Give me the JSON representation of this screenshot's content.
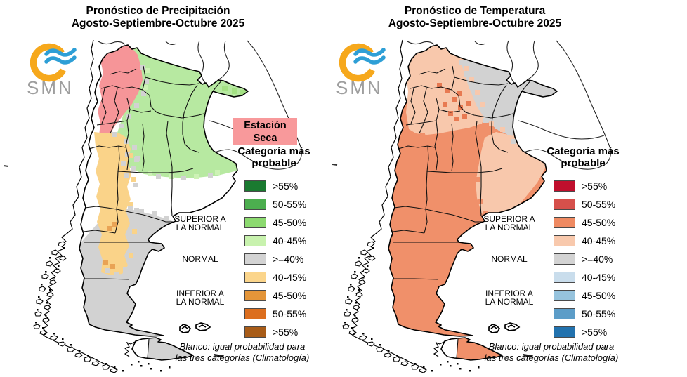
{
  "panels": [
    {
      "id": "precipitation",
      "title_line1": "Pronóstico de Precipitación",
      "title_line2": "Agosto-Septiembre-Octubre 2025",
      "logo": {
        "text": "SMN",
        "ring_color": "#F6A81C",
        "wave_color": "#2E9FD6",
        "text_color": "#9E9E9E"
      },
      "badge": {
        "line1": "Estación",
        "line2": "Seca",
        "bg": "#F8999B"
      },
      "legend": {
        "title_line1": "Categoría más",
        "title_line2": "probable",
        "rows": [
          {
            "label": ">55%",
            "color": "#1A7A30"
          },
          {
            "label": "50-55%",
            "color": "#4CAE4F"
          },
          {
            "label": "45-50%",
            "color": "#8CDA70"
          },
          {
            "label": "40-45%",
            "color": "#C8F2AE"
          },
          {
            "label": ">=40%",
            "color": "#D3D3D3"
          },
          {
            "label": "40-45%",
            "color": "#FBD58B"
          },
          {
            "label": "45-50%",
            "color": "#E49539"
          },
          {
            "label": "50-55%",
            "color": "#DC6E1E"
          },
          {
            "label": ">55%",
            "color": "#A85C18"
          }
        ],
        "groups": [
          {
            "line1": "SUPERIOR A",
            "line2": "LA NORMAL"
          },
          {
            "line1": "NORMAL",
            "line2": ""
          },
          {
            "line1": "INFERIOR A",
            "line2": "LA NORMAL"
          }
        ]
      },
      "footer_line1": "Blanco: igual probabilidad para",
      "footer_line2": "las tres categorías (Climatología)",
      "map_colors": {
        "above_normal": "#B7E9A1",
        "above_light": "#CDF2B5",
        "above_deep": "#A3E183",
        "dry_season": "#F69598",
        "below_normal": "#FAD389",
        "below_deep": "#E9A355",
        "normal": "#D2D2D2"
      }
    },
    {
      "id": "temperature",
      "title_line1": "Pronóstico de Temperatura",
      "title_line2": "Agosto-Septiembre-Octubre 2025",
      "logo": {
        "text": "SMN",
        "ring_color": "#F6A81C",
        "wave_color": "#2E9FD6",
        "text_color": "#9E9E9E"
      },
      "badge": null,
      "legend": {
        "title_line1": "Categoría más",
        "title_line2": "probable",
        "rows": [
          {
            "label": ">55%",
            "color": "#C00F2D"
          },
          {
            "label": "50-55%",
            "color": "#D6504B"
          },
          {
            "label": "45-50%",
            "color": "#EF8A62"
          },
          {
            "label": "40-45%",
            "color": "#F8C9AD"
          },
          {
            "label": ">=40%",
            "color": "#D3D3D3"
          },
          {
            "label": "40-45%",
            "color": "#C9DDEC"
          },
          {
            "label": "45-50%",
            "color": "#96C3DD"
          },
          {
            "label": "50-55%",
            "color": "#5C9DC8"
          },
          {
            "label": ">55%",
            "color": "#2272AE"
          }
        ],
        "groups": [
          {
            "line1": "SUPERIOR A",
            "line2": "LA NORMAL"
          },
          {
            "line1": "NORMAL",
            "line2": ""
          },
          {
            "line1": "INFERIOR A",
            "line2": "LA NORMAL"
          }
        ]
      },
      "footer_line1": "Blanco: igual probabilidad para",
      "footer_line2": "las tres categorías (Climatología)",
      "map_colors": {
        "above_normal": "#F0906A",
        "above_light": "#F8C8AC",
        "above_deep": "#E87A52",
        "normal": "#D2D2D2"
      }
    }
  ]
}
